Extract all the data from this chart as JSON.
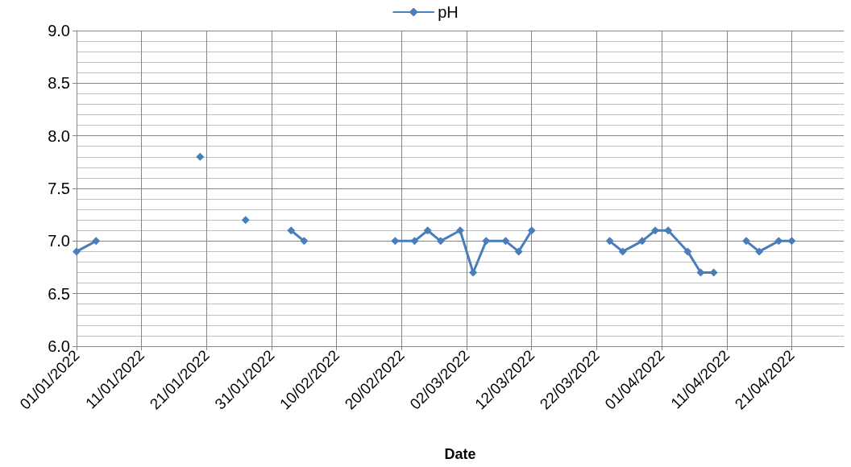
{
  "chart_data": {
    "type": "line",
    "xlabel": "Date",
    "x": [
      "2022-01-01",
      "2022-01-04",
      "2022-01-12",
      "2022-01-20",
      "2022-01-24",
      "2022-01-27",
      "2022-01-30",
      "2022-02-03",
      "2022-02-05",
      "2022-02-12",
      "2022-02-19",
      "2022-02-22",
      "2022-02-24",
      "2022-02-26",
      "2022-03-01",
      "2022-03-03",
      "2022-03-05",
      "2022-03-08",
      "2022-03-10",
      "2022-03-12",
      "2022-03-18",
      "2022-03-24",
      "2022-03-26",
      "2022-03-29",
      "2022-03-31",
      "2022-04-02",
      "2022-04-05",
      "2022-04-07",
      "2022-04-09",
      "2022-04-12",
      "2022-04-14",
      "2022-04-16",
      "2022-04-19",
      "2022-04-21"
    ],
    "series": [
      {
        "name": "pH",
        "color": "#4a7ebb",
        "values": [
          6.9,
          7.0,
          null,
          7.8,
          null,
          7.2,
          null,
          7.1,
          7.0,
          null,
          7.0,
          7.0,
          7.1,
          7.0,
          7.1,
          6.7,
          7.0,
          7.0,
          6.9,
          7.1,
          null,
          7.0,
          6.9,
          7.0,
          7.1,
          7.1,
          6.9,
          6.7,
          6.7,
          null,
          7.0,
          6.9,
          7.0,
          7.0
        ]
      }
    ],
    "xlim": [
      "2022-01-01",
      "2022-04-29"
    ],
    "xticks": [
      {
        "value": "2022-01-01",
        "label": "01/01/2022"
      },
      {
        "value": "2022-01-11",
        "label": "11/01/2022"
      },
      {
        "value": "2022-01-21",
        "label": "21/01/2022"
      },
      {
        "value": "2022-01-31",
        "label": "31/01/2022"
      },
      {
        "value": "2022-02-10",
        "label": "10/02/2022"
      },
      {
        "value": "2022-02-20",
        "label": "20/02/2022"
      },
      {
        "value": "2022-03-02",
        "label": "02/03/2022"
      },
      {
        "value": "2022-03-12",
        "label": "12/03/2022"
      },
      {
        "value": "2022-03-22",
        "label": "22/03/2022"
      },
      {
        "value": "2022-04-01",
        "label": "01/04/2022"
      },
      {
        "value": "2022-04-11",
        "label": "11/04/2022"
      },
      {
        "value": "2022-04-21",
        "label": "21/04/2022"
      }
    ],
    "ylim": [
      6.0,
      9.0
    ],
    "yticks": [
      {
        "value": 6.0,
        "label": "6.0"
      },
      {
        "value": 6.5,
        "label": "6.5"
      },
      {
        "value": 7.0,
        "label": "7.0"
      },
      {
        "value": 7.5,
        "label": "7.5"
      },
      {
        "value": 8.0,
        "label": "8.0"
      },
      {
        "value": 8.5,
        "label": "8.5"
      },
      {
        "value": 9.0,
        "label": "9.0"
      }
    ],
    "grid": true,
    "legend": "top",
    "marker": "diamond",
    "line_style": "solid"
  }
}
